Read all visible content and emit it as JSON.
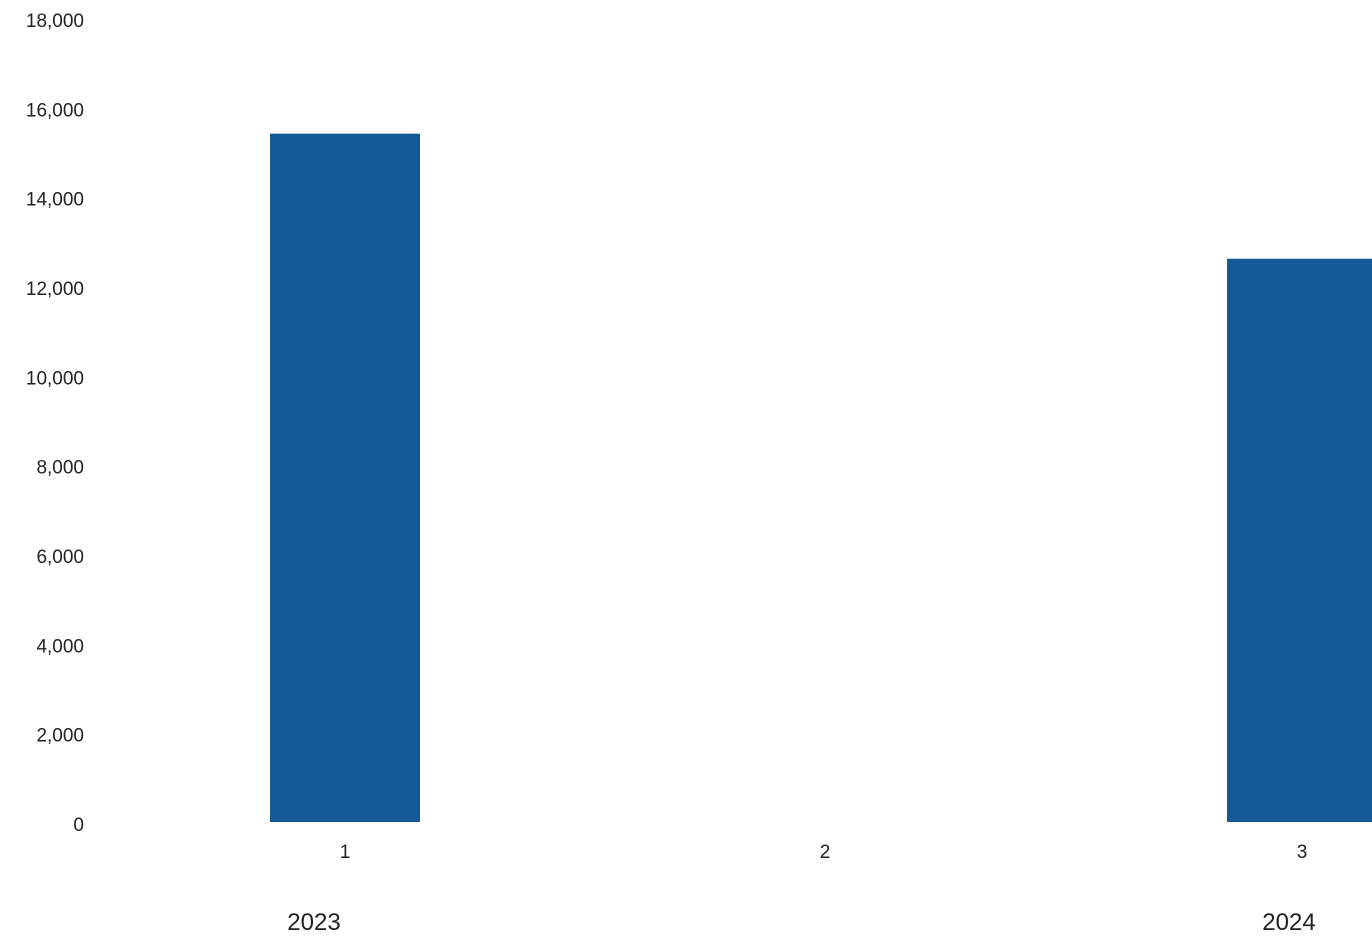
{
  "chart_data": {
    "type": "bar",
    "title": "",
    "xlabel": "",
    "ylabel": "",
    "categories": [
      "1",
      "2",
      "3"
    ],
    "values": [
      15500,
      0,
      12700
    ],
    "group_labels": [
      "2023",
      "2024"
    ],
    "ylim": [
      0,
      18000
    ],
    "yticks": [
      0,
      2000,
      4000,
      6000,
      8000,
      10000,
      12000,
      14000,
      16000,
      18000
    ],
    "ytick_labels": [
      "0",
      "2,000",
      "4,000",
      "6,000",
      "8,000",
      "10,000",
      "12,000",
      "14,000",
      "16,000",
      "18,000"
    ],
    "grid": false,
    "legend": "none",
    "bar_color": "#145a96"
  }
}
